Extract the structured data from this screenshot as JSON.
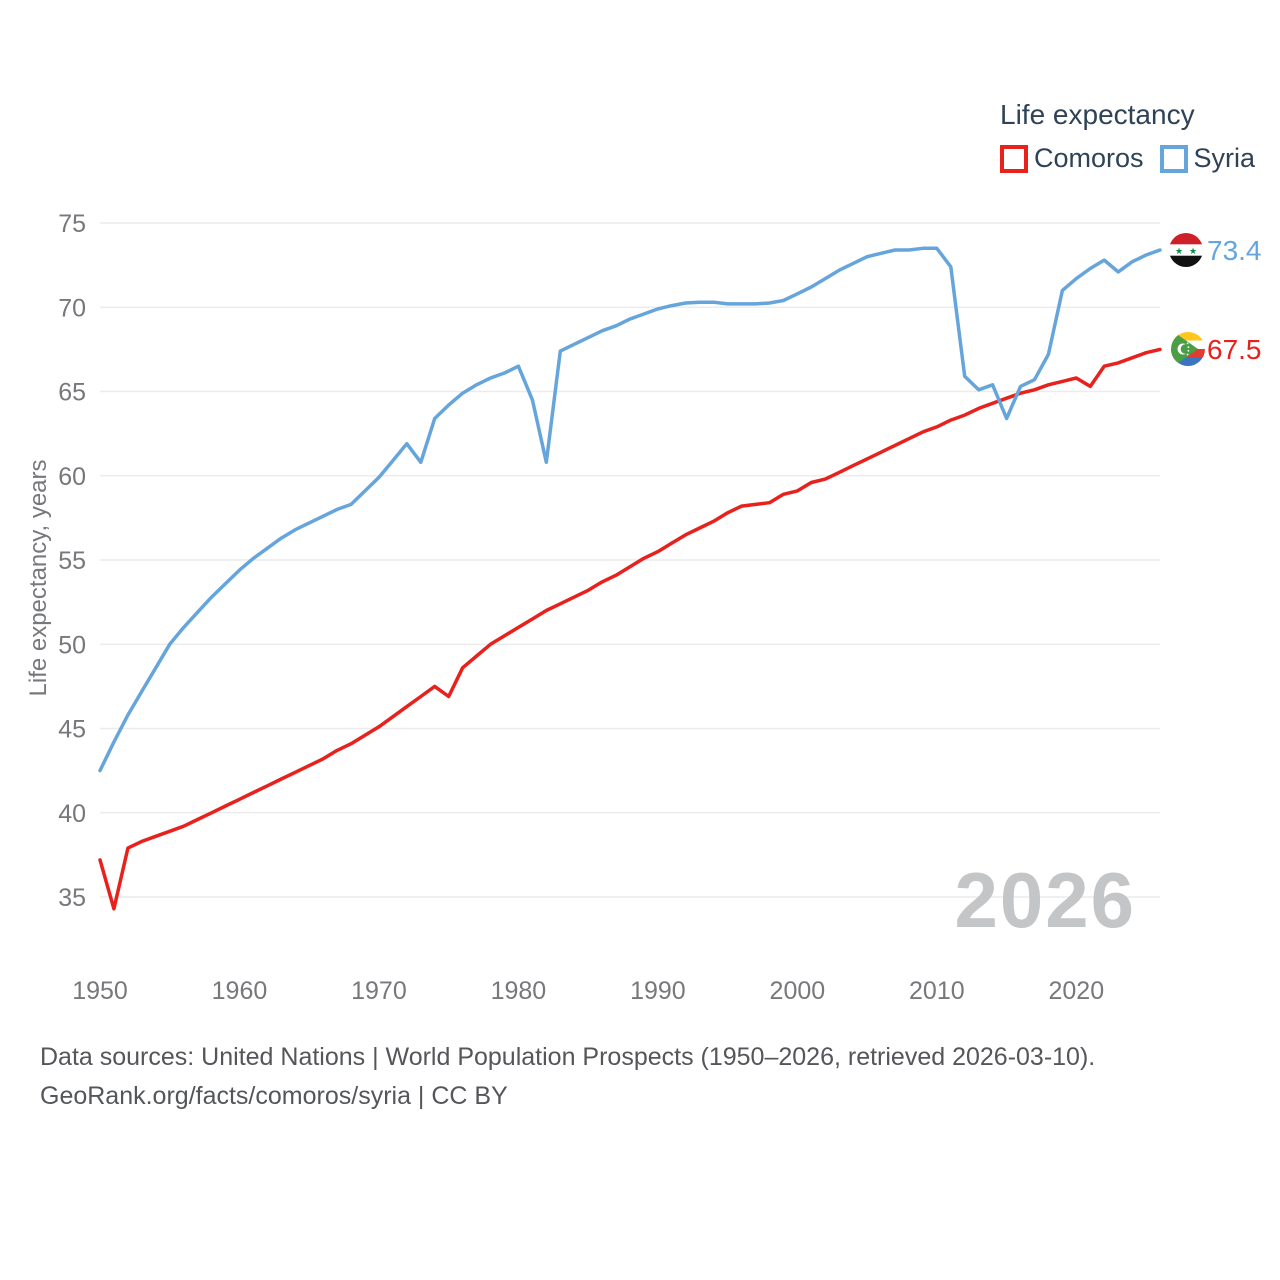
{
  "legend": {
    "title": "Life expectancy",
    "items": [
      {
        "label": "Comoros",
        "color": "#e8211c"
      },
      {
        "label": "Syria",
        "color": "#65a5dc"
      }
    ]
  },
  "chart_data": {
    "type": "line",
    "title": "Life expectancy",
    "xlabel": "",
    "ylabel": "Life expectancy, years",
    "x_range": [
      1950,
      2026
    ],
    "ylim": [
      35,
      75
    ],
    "xticks": [
      1950,
      1960,
      1970,
      1980,
      1990,
      2000,
      2010,
      2020
    ],
    "yticks": [
      35,
      40,
      45,
      50,
      55,
      60,
      65,
      70,
      75
    ],
    "grid": "horizontal only",
    "legend_position": "top-right",
    "watermark": "2026",
    "x": [
      1950,
      1951,
      1952,
      1953,
      1954,
      1955,
      1956,
      1957,
      1958,
      1959,
      1960,
      1961,
      1962,
      1963,
      1964,
      1965,
      1966,
      1967,
      1968,
      1969,
      1970,
      1971,
      1972,
      1973,
      1974,
      1975,
      1976,
      1977,
      1978,
      1979,
      1980,
      1981,
      1982,
      1983,
      1984,
      1985,
      1986,
      1987,
      1988,
      1989,
      1990,
      1991,
      1992,
      1993,
      1994,
      1995,
      1996,
      1997,
      1998,
      1999,
      2000,
      2001,
      2002,
      2003,
      2004,
      2005,
      2006,
      2007,
      2008,
      2009,
      2010,
      2011,
      2012,
      2013,
      2014,
      2015,
      2016,
      2017,
      2018,
      2019,
      2020,
      2021,
      2022,
      2023,
      2024,
      2025,
      2026
    ],
    "series": [
      {
        "name": "Comoros",
        "color": "#e8211c",
        "values": [
          37.2,
          34.3,
          37.9,
          38.3,
          38.6,
          38.9,
          39.2,
          39.6,
          40.0,
          40.4,
          40.8,
          41.2,
          41.6,
          42.0,
          42.4,
          42.8,
          43.2,
          43.7,
          44.1,
          44.6,
          45.1,
          45.7,
          46.3,
          46.9,
          47.5,
          46.9,
          48.6,
          49.3,
          50.0,
          50.5,
          51.0,
          51.5,
          52.0,
          52.4,
          52.8,
          53.2,
          53.7,
          54.1,
          54.6,
          55.1,
          55.5,
          56.0,
          56.5,
          56.9,
          57.3,
          57.8,
          58.2,
          58.3,
          58.4,
          58.9,
          59.1,
          59.6,
          59.8,
          60.2,
          60.6,
          61.0,
          61.4,
          61.8,
          62.2,
          62.6,
          62.9,
          63.3,
          63.6,
          64.0,
          64.3,
          64.6,
          64.9,
          65.1,
          65.4,
          65.6,
          65.8,
          65.3,
          66.5,
          66.7,
          67.0,
          67.3,
          67.5
        ]
      },
      {
        "name": "Syria",
        "color": "#65a5dc",
        "values": [
          42.5,
          44.2,
          45.8,
          47.2,
          48.6,
          50.0,
          51.0,
          51.9,
          52.8,
          53.6,
          54.4,
          55.1,
          55.7,
          56.3,
          56.8,
          57.2,
          57.6,
          58.0,
          58.3,
          59.1,
          59.9,
          60.9,
          61.9,
          60.8,
          63.4,
          64.2,
          64.9,
          65.4,
          65.8,
          66.1,
          66.5,
          64.5,
          60.8,
          67.4,
          67.8,
          68.2,
          68.6,
          68.9,
          69.3,
          69.6,
          69.9,
          70.1,
          70.25,
          70.3,
          70.3,
          70.2,
          70.2,
          70.2,
          70.25,
          70.4,
          70.8,
          71.2,
          71.7,
          72.2,
          72.6,
          73.0,
          73.2,
          73.4,
          73.4,
          73.5,
          73.5,
          72.4,
          65.9,
          65.1,
          65.4,
          63.4,
          65.3,
          65.7,
          67.2,
          71.0,
          71.7,
          72.3,
          72.8,
          72.1,
          72.7,
          73.1,
          73.4
        ]
      }
    ],
    "end_labels": [
      {
        "series": "Syria",
        "value": "73.4",
        "color": "#65a5dc",
        "flag": "syria-flag"
      },
      {
        "series": "Comoros",
        "value": "67.5",
        "color": "#e8211c",
        "flag": "comoros-flag"
      }
    ]
  },
  "footer": {
    "line1": "Data sources: United Nations | World Population Prospects (1950–2026, retrieved 2026-03-10).",
    "line2": "GeoRank.org/facts/comoros/syria | CC BY"
  }
}
